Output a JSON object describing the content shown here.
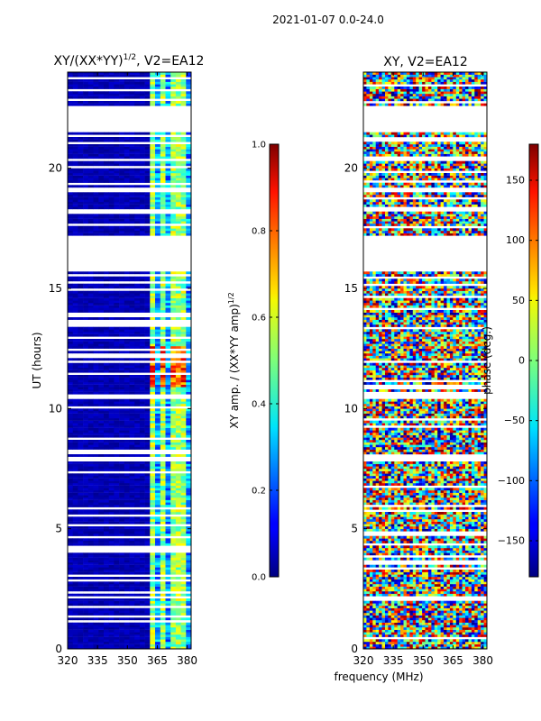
{
  "suptitle": "2021-01-07 0.0-24.0",
  "chart_data": [
    {
      "type": "heatmap",
      "title_text": "XY/(XX*YY)",
      "title_power": "1/2",
      "title_suffix": ", V2=EA12",
      "xlabel": "",
      "ylabel": "UT (hours)",
      "xlim": [
        320,
        382
      ],
      "ylim": [
        0,
        24
      ],
      "xticks": [
        320,
        335,
        350,
        365,
        380
      ],
      "yticks": [
        0,
        5,
        10,
        15,
        20
      ],
      "value_range": [
        0.0,
        1.0
      ],
      "colorbar": {
        "label_text": "XY amp. / (XX*YY amp)",
        "label_power": "1/2",
        "ticks": [
          "0.0",
          "0.2",
          "0.4",
          "0.6",
          "0.8",
          "1.0"
        ],
        "tick_values": [
          0.0,
          0.2,
          0.4,
          0.6,
          0.8,
          1.0
        ]
      },
      "missing_ut_ranges": [
        [
          4.0,
          4.3
        ],
        [
          15.7,
          17.2
        ],
        [
          21.5,
          22.6
        ],
        [
          10.4,
          10.6
        ],
        [
          7.8,
          8.0
        ]
      ],
      "bright_channel_columns_mhz": [
        363,
        367,
        372,
        377,
        379
      ],
      "peak_ut_range": [
        10.8,
        12.5
      ]
    },
    {
      "type": "heatmap",
      "title": "XY, V2=EA12",
      "xlabel": "frequency (MHz)",
      "ylabel": "",
      "xlim": [
        320,
        382
      ],
      "ylim": [
        0,
        24
      ],
      "xticks": [
        320,
        335,
        350,
        365,
        380
      ],
      "yticks": [
        0,
        5,
        10,
        15,
        20
      ],
      "value_range": [
        -180,
        180
      ],
      "colorbar": {
        "label": "phase (deg.)",
        "ticks": [
          "150",
          "100",
          "50",
          "0",
          "−50",
          "−100",
          "−150"
        ],
        "tick_values": [
          150,
          100,
          50,
          0,
          -50,
          -100,
          -150
        ]
      },
      "missing_ut_ranges": [
        [
          15.7,
          17.2
        ],
        [
          21.5,
          22.6
        ],
        [
          10.4,
          10.6
        ],
        [
          7.8,
          8.0
        ]
      ]
    }
  ]
}
